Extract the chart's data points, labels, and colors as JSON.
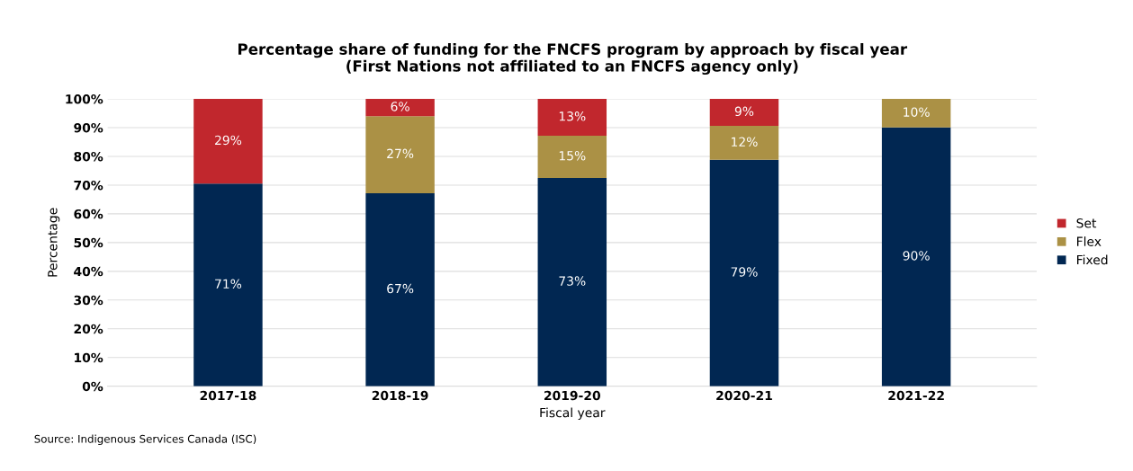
{
  "chart_data": {
    "type": "bar",
    "stacked": true,
    "title": "Percentage share of funding for the FNCFS program by approach by fiscal year\n(First Nations not affiliated to an FNCFS agency only)",
    "xlabel": "Fiscal year",
    "ylabel": "Percentage",
    "categories": [
      "2017-18",
      "2018-19",
      "2019-20",
      "2020-21",
      "2021-22"
    ],
    "series": [
      {
        "name": "Fixed",
        "color": "#012752",
        "values": [
          70.5,
          67.2,
          72.5,
          78.8,
          90.1
        ],
        "value_labels": [
          "71%",
          "67%",
          "73%",
          "79%",
          "90%"
        ]
      },
      {
        "name": "Flex",
        "color": "#ab9145",
        "values": [
          null,
          26.8,
          14.7,
          11.8,
          9.9
        ],
        "value_labels": [
          null,
          "27%",
          "15%",
          "12%",
          "10%"
        ]
      },
      {
        "name": "Set",
        "color": "#c1272d",
        "values": [
          29.5,
          6.0,
          12.8,
          9.4,
          null
        ],
        "value_labels": [
          "29%",
          "6%",
          "13%",
          "9%",
          null
        ]
      }
    ],
    "ylim": [
      0,
      100
    ],
    "yticks": [
      {
        "value": 0,
        "label": "0%"
      },
      {
        "value": 10,
        "label": "10%"
      },
      {
        "value": 20,
        "label": "20%"
      },
      {
        "value": 30,
        "label": "30%"
      },
      {
        "value": 40,
        "label": "40%"
      },
      {
        "value": 50,
        "label": "50%"
      },
      {
        "value": 60,
        "label": "60%"
      },
      {
        "value": 70,
        "label": "70%"
      },
      {
        "value": 80,
        "label": "80%"
      },
      {
        "value": 90,
        "label": "90%"
      },
      {
        "value": 100,
        "label": "100%"
      }
    ],
    "grid": "y",
    "legend": "right",
    "annotations": [
      "Source: Indigenous Services Canada (ISC)"
    ]
  }
}
